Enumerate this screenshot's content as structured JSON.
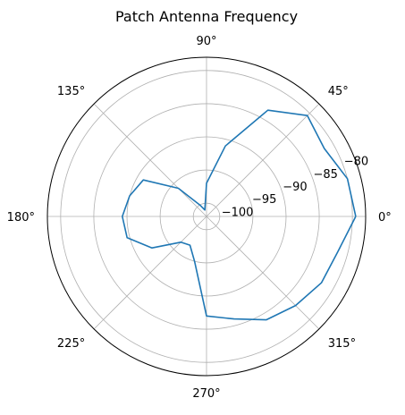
{
  "chart_data": {
    "type": "line",
    "projection": "polar",
    "title": "Patch Antenna Frequency",
    "theta_tick_labels": [
      "0°",
      "45°",
      "90°",
      "135°",
      "180°",
      "225°",
      "270°",
      "315°"
    ],
    "theta_ticks_deg": [
      0,
      45,
      90,
      135,
      180,
      225,
      270,
      315
    ],
    "r_tick_labels": [
      "−100",
      "−95",
      "−90",
      "−85",
      "−80"
    ],
    "r_ticks": [
      -100,
      -95,
      -90,
      -85,
      -80
    ],
    "rlim": [
      -102,
      -78
    ],
    "r_label_angle_deg": 22.5,
    "grid": true,
    "series": [
      {
        "color": "#1f77b4",
        "theta_deg": [
          0,
          15,
          30,
          45,
          60,
          75,
          90,
          105,
          120,
          135,
          150,
          165,
          180,
          195,
          210,
          225,
          240,
          255,
          270,
          285,
          300,
          315,
          330,
          345,
          360
        ],
        "r": [
          -79.5,
          -80,
          -81.5,
          -80.5,
          -83.5,
          -91,
          -97,
          -101,
          -100,
          -96,
          -91,
          -90,
          -89.3,
          -89.6,
          -92.5,
          -96.5,
          -97,
          -95,
          -87,
          -86,
          -84,
          -83,
          -82,
          -81.5,
          -79.5
        ]
      }
    ]
  }
}
